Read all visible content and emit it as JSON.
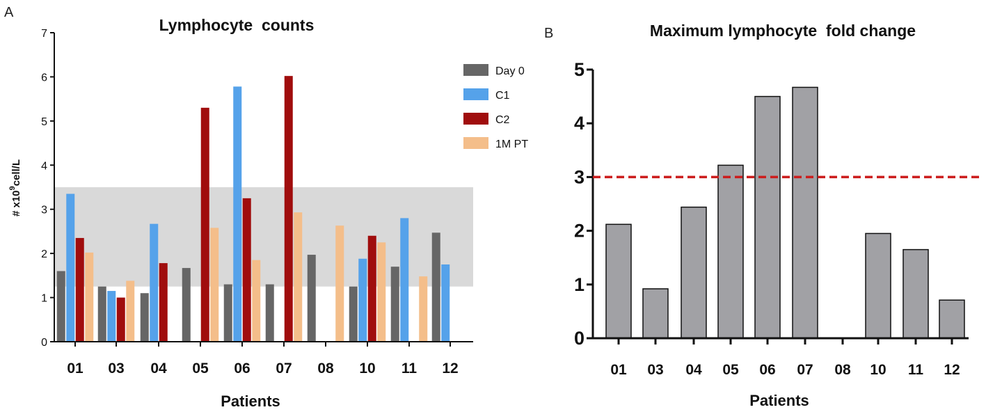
{
  "chart_data": [
    {
      "panel": "A",
      "type": "bar",
      "title": "Lymphocyte  counts",
      "xlabel": "Patients",
      "ylabel_prefix": "# x10",
      "ylabel_sup": "9",
      "ylabel_suffix": "cell/L",
      "ylim": [
        0,
        7
      ],
      "yticks": [
        "0",
        "1",
        "2",
        "3",
        "4",
        "5",
        "6",
        "7"
      ],
      "categories": [
        "01",
        "03",
        "04",
        "05",
        "06",
        "07",
        "08",
        "10",
        "11",
        "12"
      ],
      "normal_range": [
        1.25,
        3.5
      ],
      "legend_position": "top-right",
      "series": [
        {
          "name": "Day 0",
          "color": "#666666",
          "values": [
            1.6,
            1.25,
            1.1,
            1.67,
            1.3,
            1.3,
            1.97,
            1.25,
            1.7,
            2.47
          ]
        },
        {
          "name": "C1",
          "color": "#55a2ea",
          "values": [
            3.35,
            1.15,
            2.67,
            null,
            5.78,
            null,
            null,
            1.88,
            2.8,
            1.75
          ]
        },
        {
          "name": "C2",
          "color": "#a00d0d",
          "values": [
            2.35,
            1.0,
            1.78,
            5.3,
            3.25,
            6.02,
            null,
            2.4,
            null,
            null
          ]
        },
        {
          "name": "1M PT",
          "color": "#f4be8a",
          "values": [
            2.02,
            1.38,
            null,
            2.58,
            1.85,
            2.93,
            2.63,
            2.25,
            1.48,
            null
          ]
        }
      ]
    },
    {
      "panel": "B",
      "type": "bar",
      "title": "Maximum lymphocyte  fold change",
      "xlabel": "Patients",
      "ylim": [
        0,
        5
      ],
      "yticks": [
        "0",
        "1",
        "2",
        "3",
        "4",
        "5"
      ],
      "categories": [
        "01",
        "03",
        "04",
        "05",
        "06",
        "07",
        "08",
        "10",
        "11",
        "12"
      ],
      "color": "#a1a1a5",
      "threshold": 3,
      "threshold_color": "#cc1d1d",
      "values": [
        2.12,
        0.92,
        2.44,
        3.22,
        4.5,
        4.67,
        null,
        1.95,
        1.65,
        0.71
      ]
    }
  ]
}
